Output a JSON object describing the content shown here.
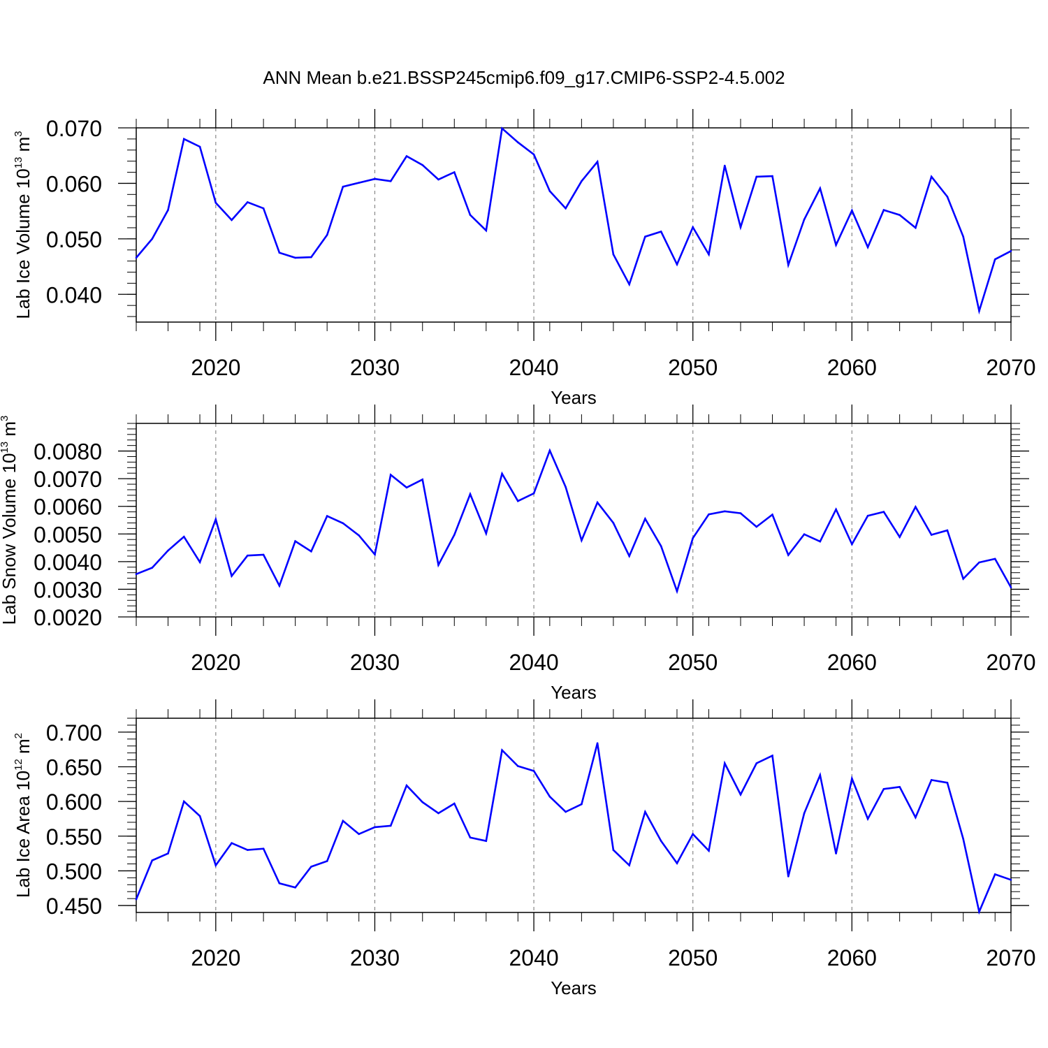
{
  "title": "ANN Mean b.e21.BSSP245cmip6.f09_g17.CMIP6-SSP2-4.5.002",
  "line_color": "#0000ff",
  "chart_data": [
    {
      "type": "line",
      "ylabel": {
        "text": "Lab Ice Volume 10",
        "exp": "13",
        "unit": " m",
        "unit_exp": "3"
      },
      "xlabel": "Years",
      "xlim": [
        2015,
        2070
      ],
      "ylim": [
        0.035,
        0.07
      ],
      "xticks": [
        "2020",
        "2030",
        "2040",
        "2050",
        "2060",
        "2070"
      ],
      "yticks": [
        "0.040",
        "0.050",
        "0.060",
        "0.070"
      ],
      "x": [
        2015,
        2016,
        2017,
        2018,
        2019,
        2020,
        2021,
        2022,
        2023,
        2024,
        2025,
        2026,
        2027,
        2028,
        2029,
        2030,
        2031,
        2032,
        2033,
        2034,
        2035,
        2036,
        2037,
        2038,
        2039,
        2040,
        2041,
        2042,
        2043,
        2044,
        2045,
        2046,
        2047,
        2048,
        2049,
        2050,
        2051,
        2052,
        2053,
        2054,
        2055,
        2056,
        2057,
        2058,
        2059,
        2060,
        2061,
        2062,
        2063,
        2064,
        2065,
        2066,
        2067,
        2068,
        2069,
        2070
      ],
      "values": [
        0.0466,
        0.05,
        0.0552,
        0.068,
        0.0666,
        0.0565,
        0.0534,
        0.0566,
        0.0555,
        0.0475,
        0.0466,
        0.0467,
        0.0507,
        0.0594,
        0.0601,
        0.0608,
        0.0604,
        0.0649,
        0.0633,
        0.0607,
        0.062,
        0.0543,
        0.0515,
        0.0699,
        0.0674,
        0.0652,
        0.0586,
        0.0555,
        0.0604,
        0.0639,
        0.0472,
        0.0418,
        0.0504,
        0.0513,
        0.0454,
        0.0521,
        0.0472,
        0.0632,
        0.0521,
        0.0612,
        0.0613,
        0.0453,
        0.0535,
        0.0591,
        0.0489,
        0.0551,
        0.0485,
        0.0552,
        0.0543,
        0.052,
        0.0612,
        0.0576,
        0.0504,
        0.037,
        0.0463,
        0.0478
      ]
    },
    {
      "type": "line",
      "ylabel": {
        "text": "Lab Snow Volume 10",
        "exp": "13",
        "unit": " m",
        "unit_exp": "3"
      },
      "xlabel": "Years",
      "xlim": [
        2015,
        2070
      ],
      "ylim": [
        0.002,
        0.009
      ],
      "xticks": [
        "2020",
        "2030",
        "2040",
        "2050",
        "2060",
        "2070"
      ],
      "yticks": [
        "0.0020",
        "0.0030",
        "0.0040",
        "0.0050",
        "0.0060",
        "0.0070",
        "0.0080"
      ],
      "x": [
        2015,
        2016,
        2017,
        2018,
        2019,
        2020,
        2021,
        2022,
        2023,
        2024,
        2025,
        2026,
        2027,
        2028,
        2029,
        2030,
        2031,
        2032,
        2033,
        2034,
        2035,
        2036,
        2037,
        2038,
        2039,
        2040,
        2041,
        2042,
        2043,
        2044,
        2045,
        2046,
        2047,
        2048,
        2049,
        2050,
        2051,
        2052,
        2053,
        2054,
        2055,
        2056,
        2057,
        2058,
        2059,
        2060,
        2061,
        2062,
        2063,
        2064,
        2065,
        2066,
        2067,
        2068,
        2069,
        2070
      ],
      "values": [
        0.00355,
        0.00378,
        0.0044,
        0.0049,
        0.00398,
        0.00553,
        0.00348,
        0.00422,
        0.00425,
        0.00313,
        0.00474,
        0.00437,
        0.00565,
        0.00539,
        0.00495,
        0.00426,
        0.00714,
        0.00668,
        0.00697,
        0.00388,
        0.00497,
        0.00644,
        0.00502,
        0.00718,
        0.00619,
        0.00647,
        0.00802,
        0.0067,
        0.00477,
        0.00614,
        0.0054,
        0.0042,
        0.00555,
        0.00456,
        0.00293,
        0.00485,
        0.00571,
        0.00582,
        0.00575,
        0.00526,
        0.0057,
        0.00424,
        0.00499,
        0.00473,
        0.00589,
        0.00463,
        0.00566,
        0.0058,
        0.00489,
        0.00598,
        0.00497,
        0.00513,
        0.00338,
        0.00397,
        0.0041,
        0.00307
      ]
    },
    {
      "type": "line",
      "ylabel": {
        "text": "Lab Ice Area 10",
        "exp": "12",
        "unit": " m",
        "unit_exp": "2"
      },
      "xlabel": "Years",
      "xlim": [
        2015,
        2070
      ],
      "ylim": [
        0.44,
        0.72
      ],
      "xticks": [
        "2020",
        "2030",
        "2040",
        "2050",
        "2060",
        "2070"
      ],
      "yticks": [
        "0.450",
        "0.500",
        "0.550",
        "0.600",
        "0.650",
        "0.700"
      ],
      "x": [
        2015,
        2016,
        2017,
        2018,
        2019,
        2020,
        2021,
        2022,
        2023,
        2024,
        2025,
        2026,
        2027,
        2028,
        2029,
        2030,
        2031,
        2032,
        2033,
        2034,
        2035,
        2036,
        2037,
        2038,
        2039,
        2040,
        2041,
        2042,
        2043,
        2044,
        2045,
        2046,
        2047,
        2048,
        2049,
        2050,
        2051,
        2052,
        2053,
        2054,
        2055,
        2056,
        2057,
        2058,
        2059,
        2060,
        2061,
        2062,
        2063,
        2064,
        2065,
        2066,
        2067,
        2068,
        2069,
        2070
      ],
      "values": [
        0.459,
        0.515,
        0.525,
        0.6,
        0.579,
        0.508,
        0.54,
        0.53,
        0.532,
        0.482,
        0.476,
        0.506,
        0.514,
        0.572,
        0.553,
        0.563,
        0.565,
        0.623,
        0.599,
        0.583,
        0.597,
        0.548,
        0.543,
        0.674,
        0.651,
        0.644,
        0.607,
        0.585,
        0.596,
        0.684,
        0.53,
        0.508,
        0.585,
        0.543,
        0.511,
        0.553,
        0.529,
        0.655,
        0.61,
        0.655,
        0.666,
        0.492,
        0.583,
        0.638,
        0.525,
        0.633,
        0.575,
        0.618,
        0.621,
        0.577,
        0.631,
        0.627,
        0.546,
        0.441,
        0.495,
        0.487
      ]
    }
  ]
}
